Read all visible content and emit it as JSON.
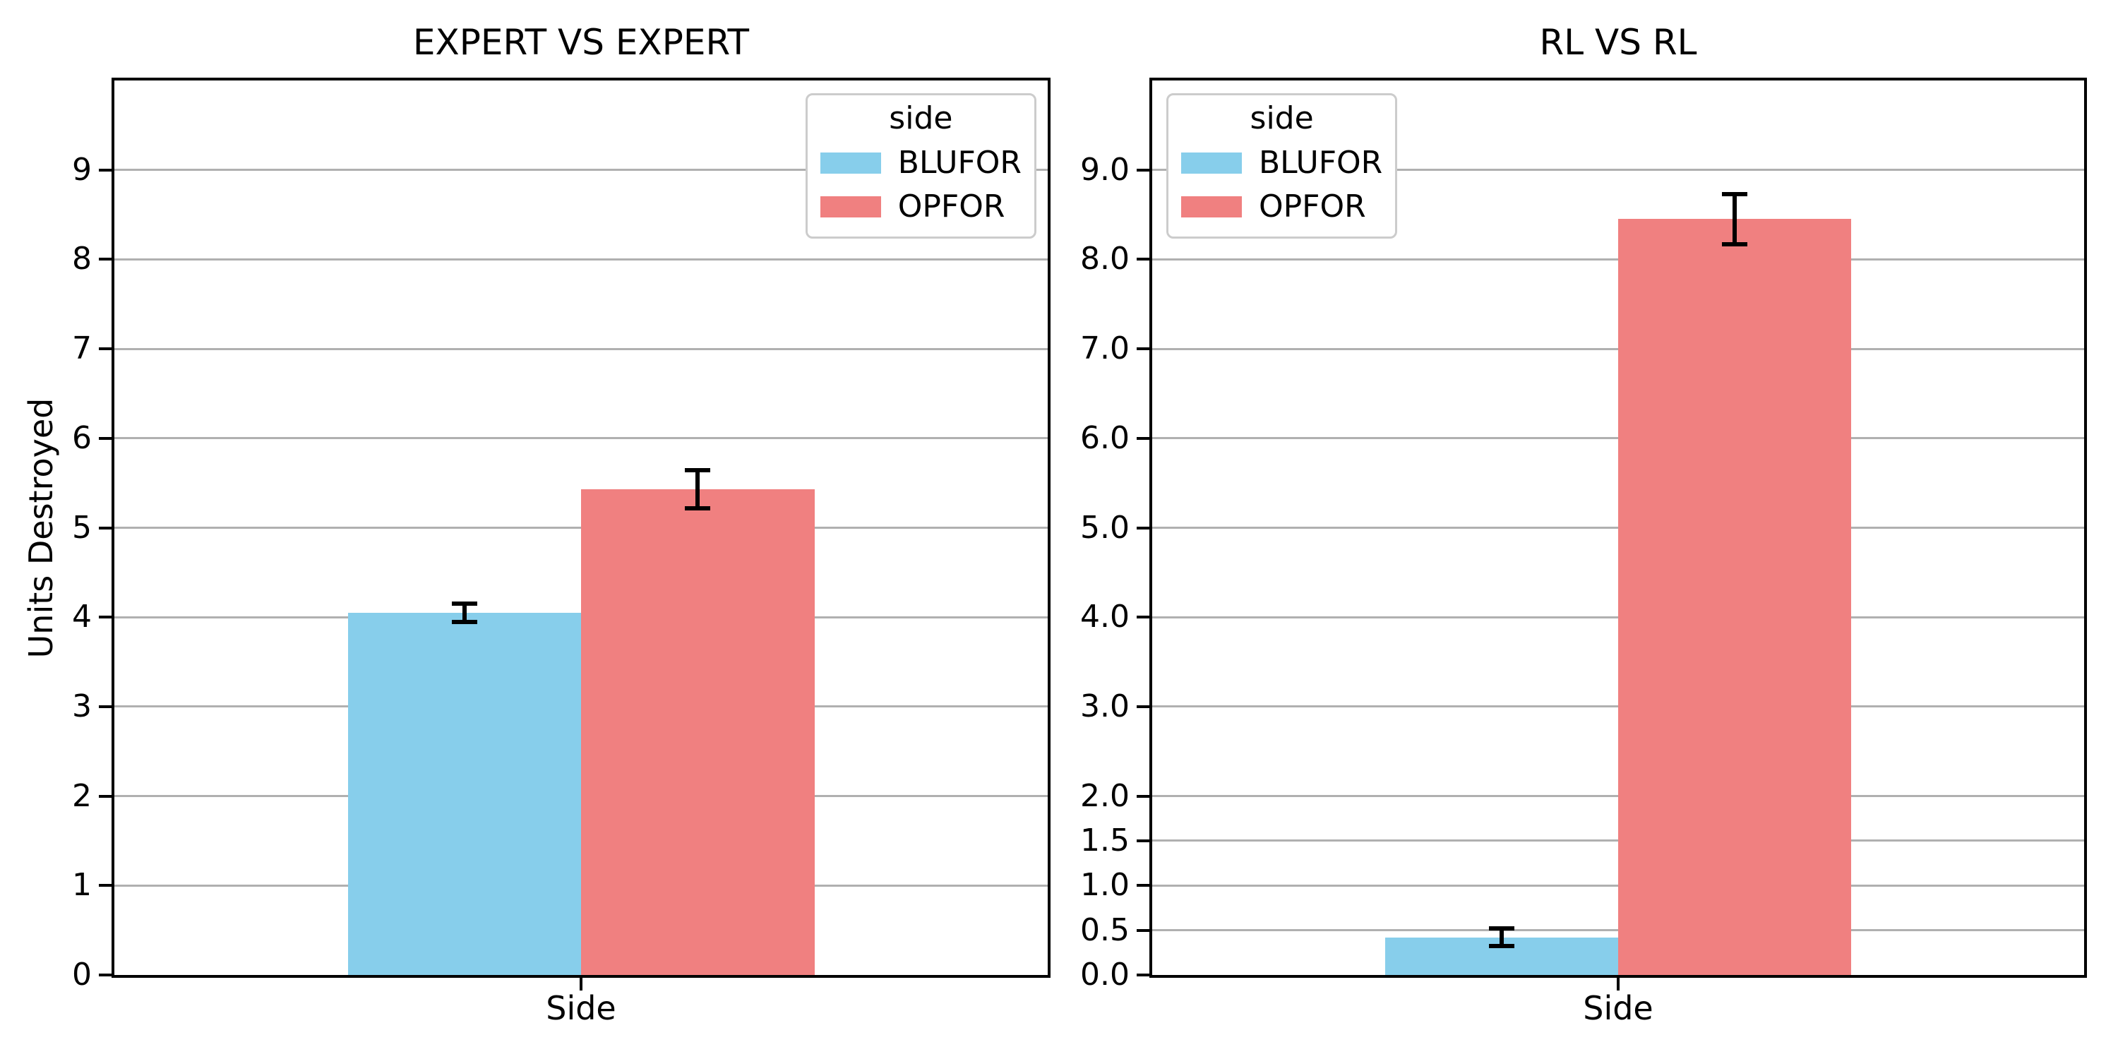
{
  "figure": {
    "background": "#ffffff",
    "grid_color": "#b0b0b0",
    "spine_color": "#000000",
    "errorbar_color": "#000000",
    "legend_border_color": "#cccccc"
  },
  "chart_data": [
    {
      "type": "bar",
      "title": "EXPERT VS EXPERT",
      "xlabel": "Side",
      "ylabel": "Units Destroyed",
      "categories": [
        "Side"
      ],
      "series": [
        {
          "name": "BLUFOR",
          "color": "#87ceeb",
          "values": [
            4.05
          ],
          "errors": [
            0.1
          ]
        },
        {
          "name": "OPFOR",
          "color": "#f08080",
          "values": [
            5.43
          ],
          "errors": [
            0.21
          ]
        }
      ],
      "ylim": [
        0,
        10
      ],
      "yticks": [
        0,
        1,
        2,
        3,
        4,
        5,
        6,
        7,
        8,
        9
      ],
      "ytick_labels": [
        "0",
        "1",
        "2",
        "3",
        "4",
        "5",
        "6",
        "7",
        "8",
        "9"
      ],
      "grid": true,
      "legend": {
        "title": "side",
        "position": "upper-right"
      }
    },
    {
      "type": "bar",
      "title": "RL VS RL",
      "xlabel": "Side",
      "ylabel": "",
      "categories": [
        "Side"
      ],
      "series": [
        {
          "name": "BLUFOR",
          "color": "#87ceeb",
          "values": [
            0.42
          ],
          "errors": [
            0.1
          ]
        },
        {
          "name": "OPFOR",
          "color": "#f08080",
          "values": [
            8.45
          ],
          "errors": [
            0.28
          ]
        }
      ],
      "ylim": [
        0,
        10
      ],
      "yticks": [
        0,
        0.5,
        1,
        1.5,
        2,
        3,
        4,
        5,
        6,
        7,
        8,
        9
      ],
      "ytick_labels": [
        "0.0",
        "0.5",
        "1.0",
        "1.5",
        "2.0",
        "3.0",
        "4.0",
        "5.0",
        "6.0",
        "7.0",
        "8.0",
        "9.0"
      ],
      "grid": true,
      "legend": {
        "title": "side",
        "position": "upper-left"
      }
    }
  ]
}
